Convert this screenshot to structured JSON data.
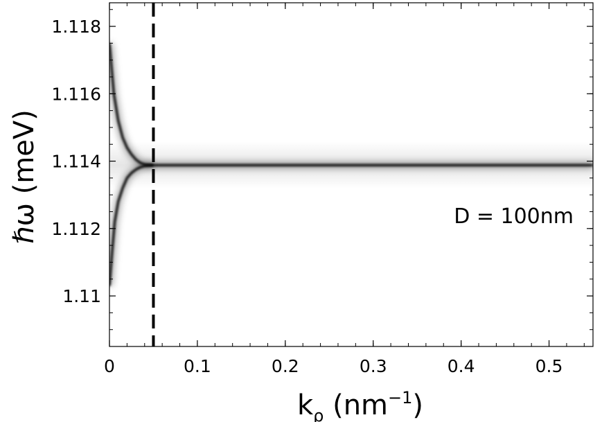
{
  "chart_data": {
    "type": "heatmap",
    "title": "",
    "xlabel": "k",
    "xlabel_sub": "ρ",
    "xlabel_unit_open": " (nm",
    "xlabel_unit_exp": "−1",
    "xlabel_unit_close": ")",
    "ylabel": "ℏω (meV)",
    "xlim": [
      0,
      0.55
    ],
    "ylim": [
      1.1085,
      1.1187
    ],
    "x_ticks": [
      0,
      0.1,
      0.2,
      0.3,
      0.4,
      0.5
    ],
    "x_tick_labels": [
      "0",
      "0.1",
      "0.2",
      "0.3",
      "0.4",
      "0.5"
    ],
    "y_ticks": [
      1.11,
      1.112,
      1.114,
      1.116,
      1.118
    ],
    "y_tick_labels": [
      "1.11",
      "1.112",
      "1.114",
      "1.116",
      "1.118"
    ],
    "grid": false,
    "colormap": "grayscale (white → black)",
    "series": [
      {
        "role": "upper-branch",
        "x": [
          0,
          0.005,
          0.01,
          0.015,
          0.02,
          0.025,
          0.03,
          0.035,
          0.04,
          0.05,
          0.1,
          0.2,
          0.3,
          0.4,
          0.5,
          0.55
        ],
        "y": [
          1.1175,
          1.116,
          1.1152,
          1.1147,
          1.1144,
          1.1142,
          1.11405,
          1.11395,
          1.1139,
          1.11388,
          1.11388,
          1.11388,
          1.11388,
          1.11388,
          1.11388,
          1.11388
        ]
      },
      {
        "role": "lower-branch",
        "x": [
          0,
          0.003,
          0.006,
          0.01,
          0.015,
          0.02,
          0.025,
          0.03,
          0.035,
          0.04,
          0.05
        ],
        "y": [
          1.1103,
          1.1113,
          1.1122,
          1.1128,
          1.1132,
          1.1135,
          1.11365,
          1.11375,
          1.11382,
          1.11386,
          1.11388
        ]
      }
    ],
    "vline": {
      "x": 0.05,
      "style": "dashed",
      "color": "#000000"
    },
    "annotation": "D = 100nm"
  }
}
